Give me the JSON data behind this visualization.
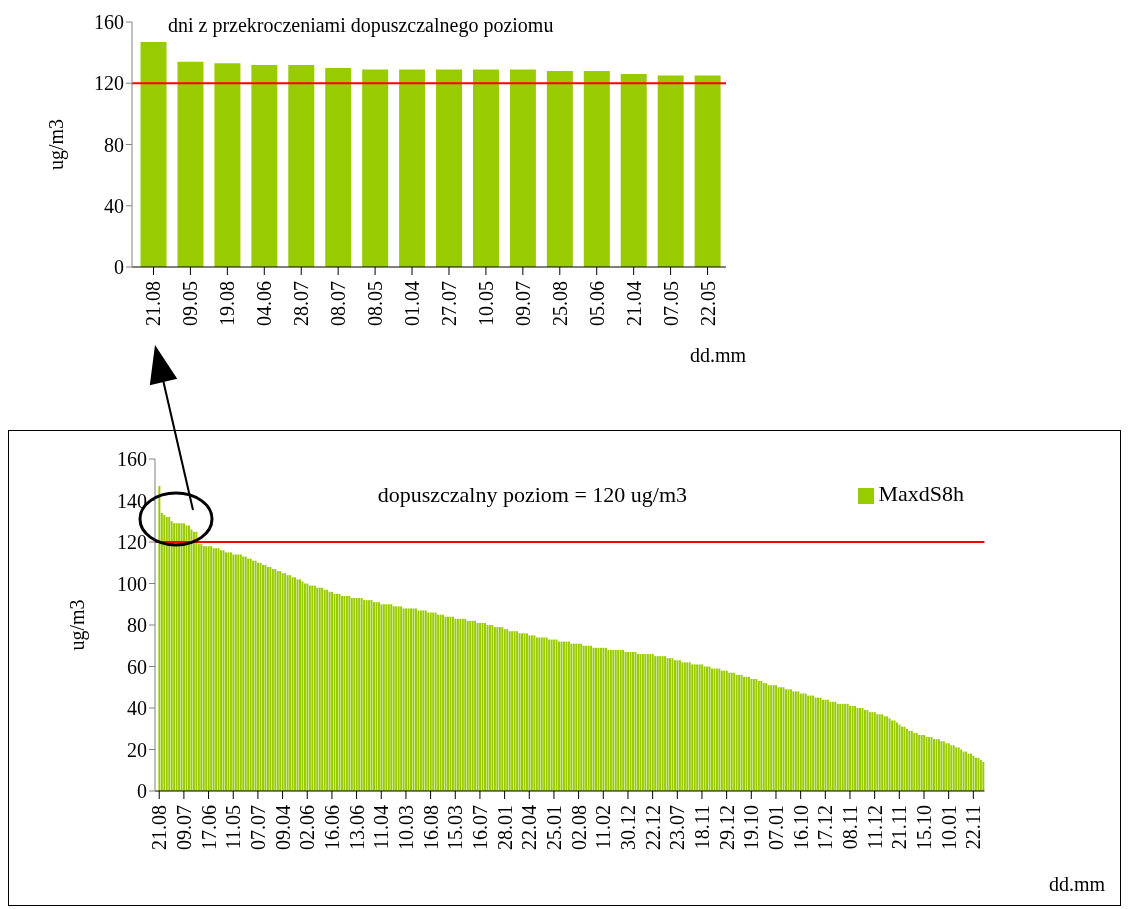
{
  "chart_data": [
    {
      "type": "bar",
      "title": "dni z przekroczeniami dopuszczalnego poziomu",
      "ylabel": "ug/m3",
      "xlabel": "dd.mm",
      "categories": [
        "21.08",
        "09.05",
        "19.08",
        "04.06",
        "28.07",
        "08.07",
        "08.05",
        "01.04",
        "27.07",
        "10.05",
        "09.07",
        "25.08",
        "05.06",
        "21.04",
        "07.05",
        "22.05"
      ],
      "values": [
        147,
        134,
        133,
        132,
        132,
        130,
        129,
        129,
        129,
        129,
        129,
        128,
        128,
        126,
        125,
        125
      ],
      "color": "#99cc00",
      "ylim": [
        0,
        160
      ],
      "yticks": [
        0,
        40,
        80,
        120,
        160
      ],
      "grid": false,
      "legend": false,
      "ref_lines": [
        {
          "axis": "y",
          "value": 120,
          "color": "#ff0000"
        }
      ]
    },
    {
      "type": "bar",
      "ylabel": "ug/m3",
      "xlabel": "dd.mm",
      "categories": [
        "21.08",
        null,
        null,
        null,
        null,
        null,
        null,
        null,
        null,
        null,
        "09.07",
        null,
        null,
        null,
        null,
        null,
        null,
        null,
        null,
        null,
        "17.06",
        null,
        null,
        null,
        null,
        null,
        null,
        null,
        null,
        null,
        "11.05",
        null,
        null,
        null,
        null,
        null,
        null,
        null,
        null,
        null,
        "07.07",
        null,
        null,
        null,
        null,
        null,
        null,
        null,
        null,
        null,
        "09.04",
        null,
        null,
        null,
        null,
        null,
        null,
        null,
        null,
        null,
        "02.06",
        null,
        null,
        null,
        null,
        null,
        null,
        null,
        null,
        null,
        "16.06",
        null,
        null,
        null,
        null,
        null,
        null,
        null,
        null,
        null,
        "13.06",
        null,
        null,
        null,
        null,
        null,
        null,
        null,
        null,
        null,
        "11.04",
        null,
        null,
        null,
        null,
        null,
        null,
        null,
        null,
        null,
        "10.03",
        null,
        null,
        null,
        null,
        null,
        null,
        null,
        null,
        null,
        "16.08",
        null,
        null,
        null,
        null,
        null,
        null,
        null,
        null,
        null,
        "15.03",
        null,
        null,
        null,
        null,
        null,
        null,
        null,
        null,
        null,
        "16.07",
        null,
        null,
        null,
        null,
        null,
        null,
        null,
        null,
        null,
        "28.01",
        null,
        null,
        null,
        null,
        null,
        null,
        null,
        null,
        null,
        "22.04",
        null,
        null,
        null,
        null,
        null,
        null,
        null,
        null,
        null,
        "25.01",
        null,
        null,
        null,
        null,
        null,
        null,
        null,
        null,
        null,
        "02.08",
        null,
        null,
        null,
        null,
        null,
        null,
        null,
        null,
        null,
        "11.02",
        null,
        null,
        null,
        null,
        null,
        null,
        null,
        null,
        null,
        "30.12",
        null,
        null,
        null,
        null,
        null,
        null,
        null,
        null,
        null,
        "22.12",
        null,
        null,
        null,
        null,
        null,
        null,
        null,
        null,
        null,
        "23.07",
        null,
        null,
        null,
        null,
        null,
        null,
        null,
        null,
        null,
        "18.11",
        null,
        null,
        null,
        null,
        null,
        null,
        null,
        null,
        null,
        "29.12",
        null,
        null,
        null,
        null,
        null,
        null,
        null,
        null,
        null,
        "19.10",
        null,
        null,
        null,
        null,
        null,
        null,
        null,
        null,
        null,
        "07.01",
        null,
        null,
        null,
        null,
        null,
        null,
        null,
        null,
        null,
        "16.10",
        null,
        null,
        null,
        null,
        null,
        null,
        null,
        null,
        null,
        "17.12",
        null,
        null,
        null,
        null,
        null,
        null,
        null,
        null,
        null,
        "08.11",
        null,
        null,
        null,
        null,
        null,
        null,
        null,
        null,
        null,
        "11.12",
        null,
        null,
        null,
        null,
        null,
        null,
        null,
        null,
        null,
        "21.11",
        null,
        null,
        null,
        null,
        null,
        null,
        null,
        null,
        null,
        "15.10",
        null,
        null,
        null,
        null,
        null,
        null,
        null,
        null,
        null,
        "10.01",
        null,
        null,
        null,
        null,
        null,
        null,
        null,
        null,
        null,
        "22.11",
        null,
        null,
        null,
        null
      ],
      "series": [
        {
          "name": "MaxdS8h",
          "color": "#99cc00",
          "values": [
            147,
            134,
            133,
            132,
            132,
            130,
            129,
            129,
            129,
            129,
            129,
            128,
            128,
            126,
            125,
            125,
            119,
            119,
            118,
            118,
            118,
            118,
            117,
            117,
            117,
            116,
            116,
            115,
            115,
            115,
            114,
            114,
            114,
            114,
            113,
            113,
            112,
            112,
            111,
            111,
            110,
            110,
            109,
            109,
            108,
            108,
            107,
            107,
            106,
            106,
            105,
            105,
            104,
            104,
            103,
            103,
            102,
            102,
            101,
            100,
            100,
            99,
            99,
            99,
            98,
            98,
            98,
            97,
            97,
            96,
            96,
            95,
            95,
            95,
            94,
            94,
            94,
            94,
            93,
            93,
            93,
            93,
            93,
            92,
            92,
            92,
            92,
            91,
            91,
            91,
            90,
            90,
            90,
            90,
            90,
            89,
            89,
            89,
            89,
            88,
            88,
            88,
            88,
            88,
            88,
            87,
            87,
            87,
            87,
            86,
            86,
            86,
            86,
            85,
            85,
            85,
            84,
            84,
            84,
            84,
            83,
            83,
            83,
            83,
            83,
            82,
            82,
            82,
            82,
            81,
            81,
            81,
            81,
            80,
            80,
            80,
            79,
            79,
            79,
            79,
            78,
            78,
            77,
            77,
            77,
            77,
            76,
            76,
            76,
            76,
            75,
            75,
            75,
            74,
            74,
            74,
            74,
            74,
            73,
            73,
            73,
            73,
            72,
            72,
            72,
            72,
            72,
            71,
            71,
            71,
            71,
            71,
            70,
            70,
            70,
            70,
            69,
            69,
            69,
            69,
            69,
            69,
            68,
            68,
            68,
            68,
            68,
            68,
            68,
            67,
            67,
            67,
            67,
            67,
            66,
            66,
            66,
            66,
            66,
            66,
            66,
            65,
            65,
            65,
            65,
            65,
            64,
            64,
            64,
            63,
            63,
            63,
            62,
            62,
            62,
            62,
            61,
            61,
            61,
            61,
            61,
            60,
            60,
            60,
            59,
            59,
            59,
            59,
            58,
            58,
            58,
            57,
            57,
            57,
            56,
            56,
            56,
            55,
            55,
            55,
            54,
            54,
            54,
            53,
            53,
            52,
            52,
            51,
            51,
            51,
            51,
            50,
            50,
            50,
            49,
            49,
            49,
            48,
            48,
            48,
            47,
            47,
            47,
            46,
            46,
            46,
            45,
            45,
            45,
            44,
            44,
            44,
            43,
            43,
            43,
            42,
            42,
            42,
            42,
            42,
            41,
            41,
            41,
            40,
            40,
            40,
            39,
            39,
            38,
            38,
            38,
            37,
            37,
            37,
            36,
            36,
            35,
            34,
            34,
            33,
            32,
            31,
            31,
            30,
            29,
            29,
            28,
            28,
            27,
            27,
            27,
            26,
            26,
            26,
            25,
            25,
            25,
            24,
            24,
            23,
            23,
            22,
            22,
            21,
            21,
            20,
            19,
            19,
            18,
            18,
            17,
            16,
            16,
            15,
            14
          ]
        }
      ],
      "ylim": [
        0,
        160
      ],
      "yticks": [
        0,
        20,
        40,
        60,
        80,
        100,
        120,
        140,
        160
      ],
      "grid": false,
      "legend": "top right",
      "ref_lines": [
        {
          "axis": "y",
          "value": 120,
          "label": "dopuszczalny poziom = 120 ug/m3",
          "color": "#ff0000"
        }
      ]
    }
  ]
}
